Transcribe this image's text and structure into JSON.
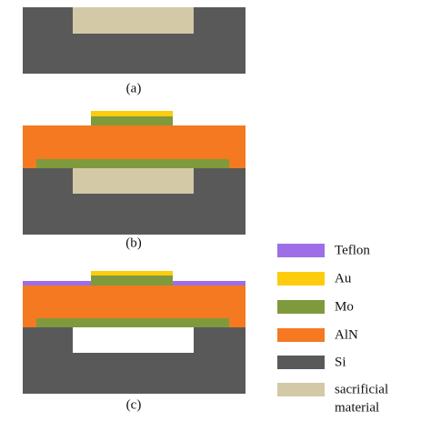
{
  "panels": [
    {
      "label": "(a)"
    },
    {
      "label": "(b)"
    },
    {
      "label": "(c)"
    }
  ],
  "legend": [
    {
      "label": "Teflon"
    },
    {
      "label": "Au"
    },
    {
      "label": "Mo"
    },
    {
      "label": "AlN"
    },
    {
      "label": "Si"
    },
    {
      "label_lines": [
        "sacrificial",
        "material"
      ]
    }
  ]
}
